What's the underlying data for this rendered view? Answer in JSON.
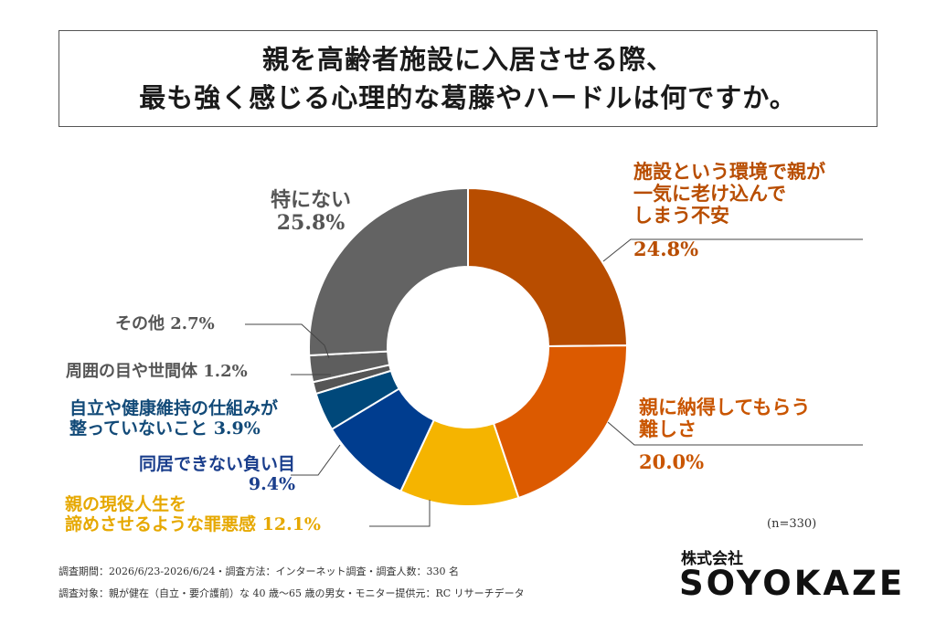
{
  "title": {
    "line1": "親を高齢者施設に入居させる際、",
    "line2": "最も強く感じる心理的な葛藤やハードルは何ですか。"
  },
  "chart_data": {
    "type": "pie",
    "donut": true,
    "categories": [
      "施設という環境で親が一気に老け込んでしまう不安",
      "親に納得してもらう難しさ",
      "親の現役人生を諦めさせるような罪悪感",
      "同居できない負い目",
      "自立や健康維持の仕組みが整っていないこと",
      "周囲の目や世間体",
      "その他",
      "特にない"
    ],
    "values": [
      24.8,
      20.0,
      12.1,
      9.4,
      3.9,
      1.2,
      2.7,
      25.8
    ],
    "colors": [
      "#B84D00",
      "#DC5A00",
      "#F5B400",
      "#003D8F",
      "#00487A",
      "#555555",
      "#5E5E5E",
      "#636363"
    ],
    "label_texts": [
      [
        "施設という環境で親が",
        "一気に老け込んで",
        "しまう不安"
      ],
      [
        "親に納得してもらう",
        "難しさ"
      ],
      [
        "親の現役人生を",
        "諦めさせるような罪悪感"
      ],
      [
        "同居できない負い目"
      ],
      [
        "自立や健康維持の仕組みが",
        "整っていないこと"
      ],
      [
        "周囲の目や世間体"
      ],
      [
        "その他"
      ],
      [
        "特にない"
      ]
    ],
    "value_labels": [
      "24.8%",
      "20.0%",
      "12.1%",
      "9.4%",
      "3.9%",
      "1.2%",
      "2.7%",
      "25.8%"
    ],
    "label_colors": [
      "#B84D00",
      "#C95500",
      "#E6A800",
      "#1A3E8C",
      "#124A78",
      "#555555",
      "#555555",
      "#555555"
    ],
    "n_note": "(n=330)"
  },
  "footer": {
    "line1": "調査期間：2026/6/23-2026/6/24・調査方法：インターネット調査・調査人数：330 名",
    "line2": "調査対象：親が健在（自立・要介護前）な 40 歳〜65 歳の男女・モニター提供元：RC リサーチデータ"
  },
  "brand": {
    "company": "株式会社",
    "name": "SOYOKAZE"
  }
}
